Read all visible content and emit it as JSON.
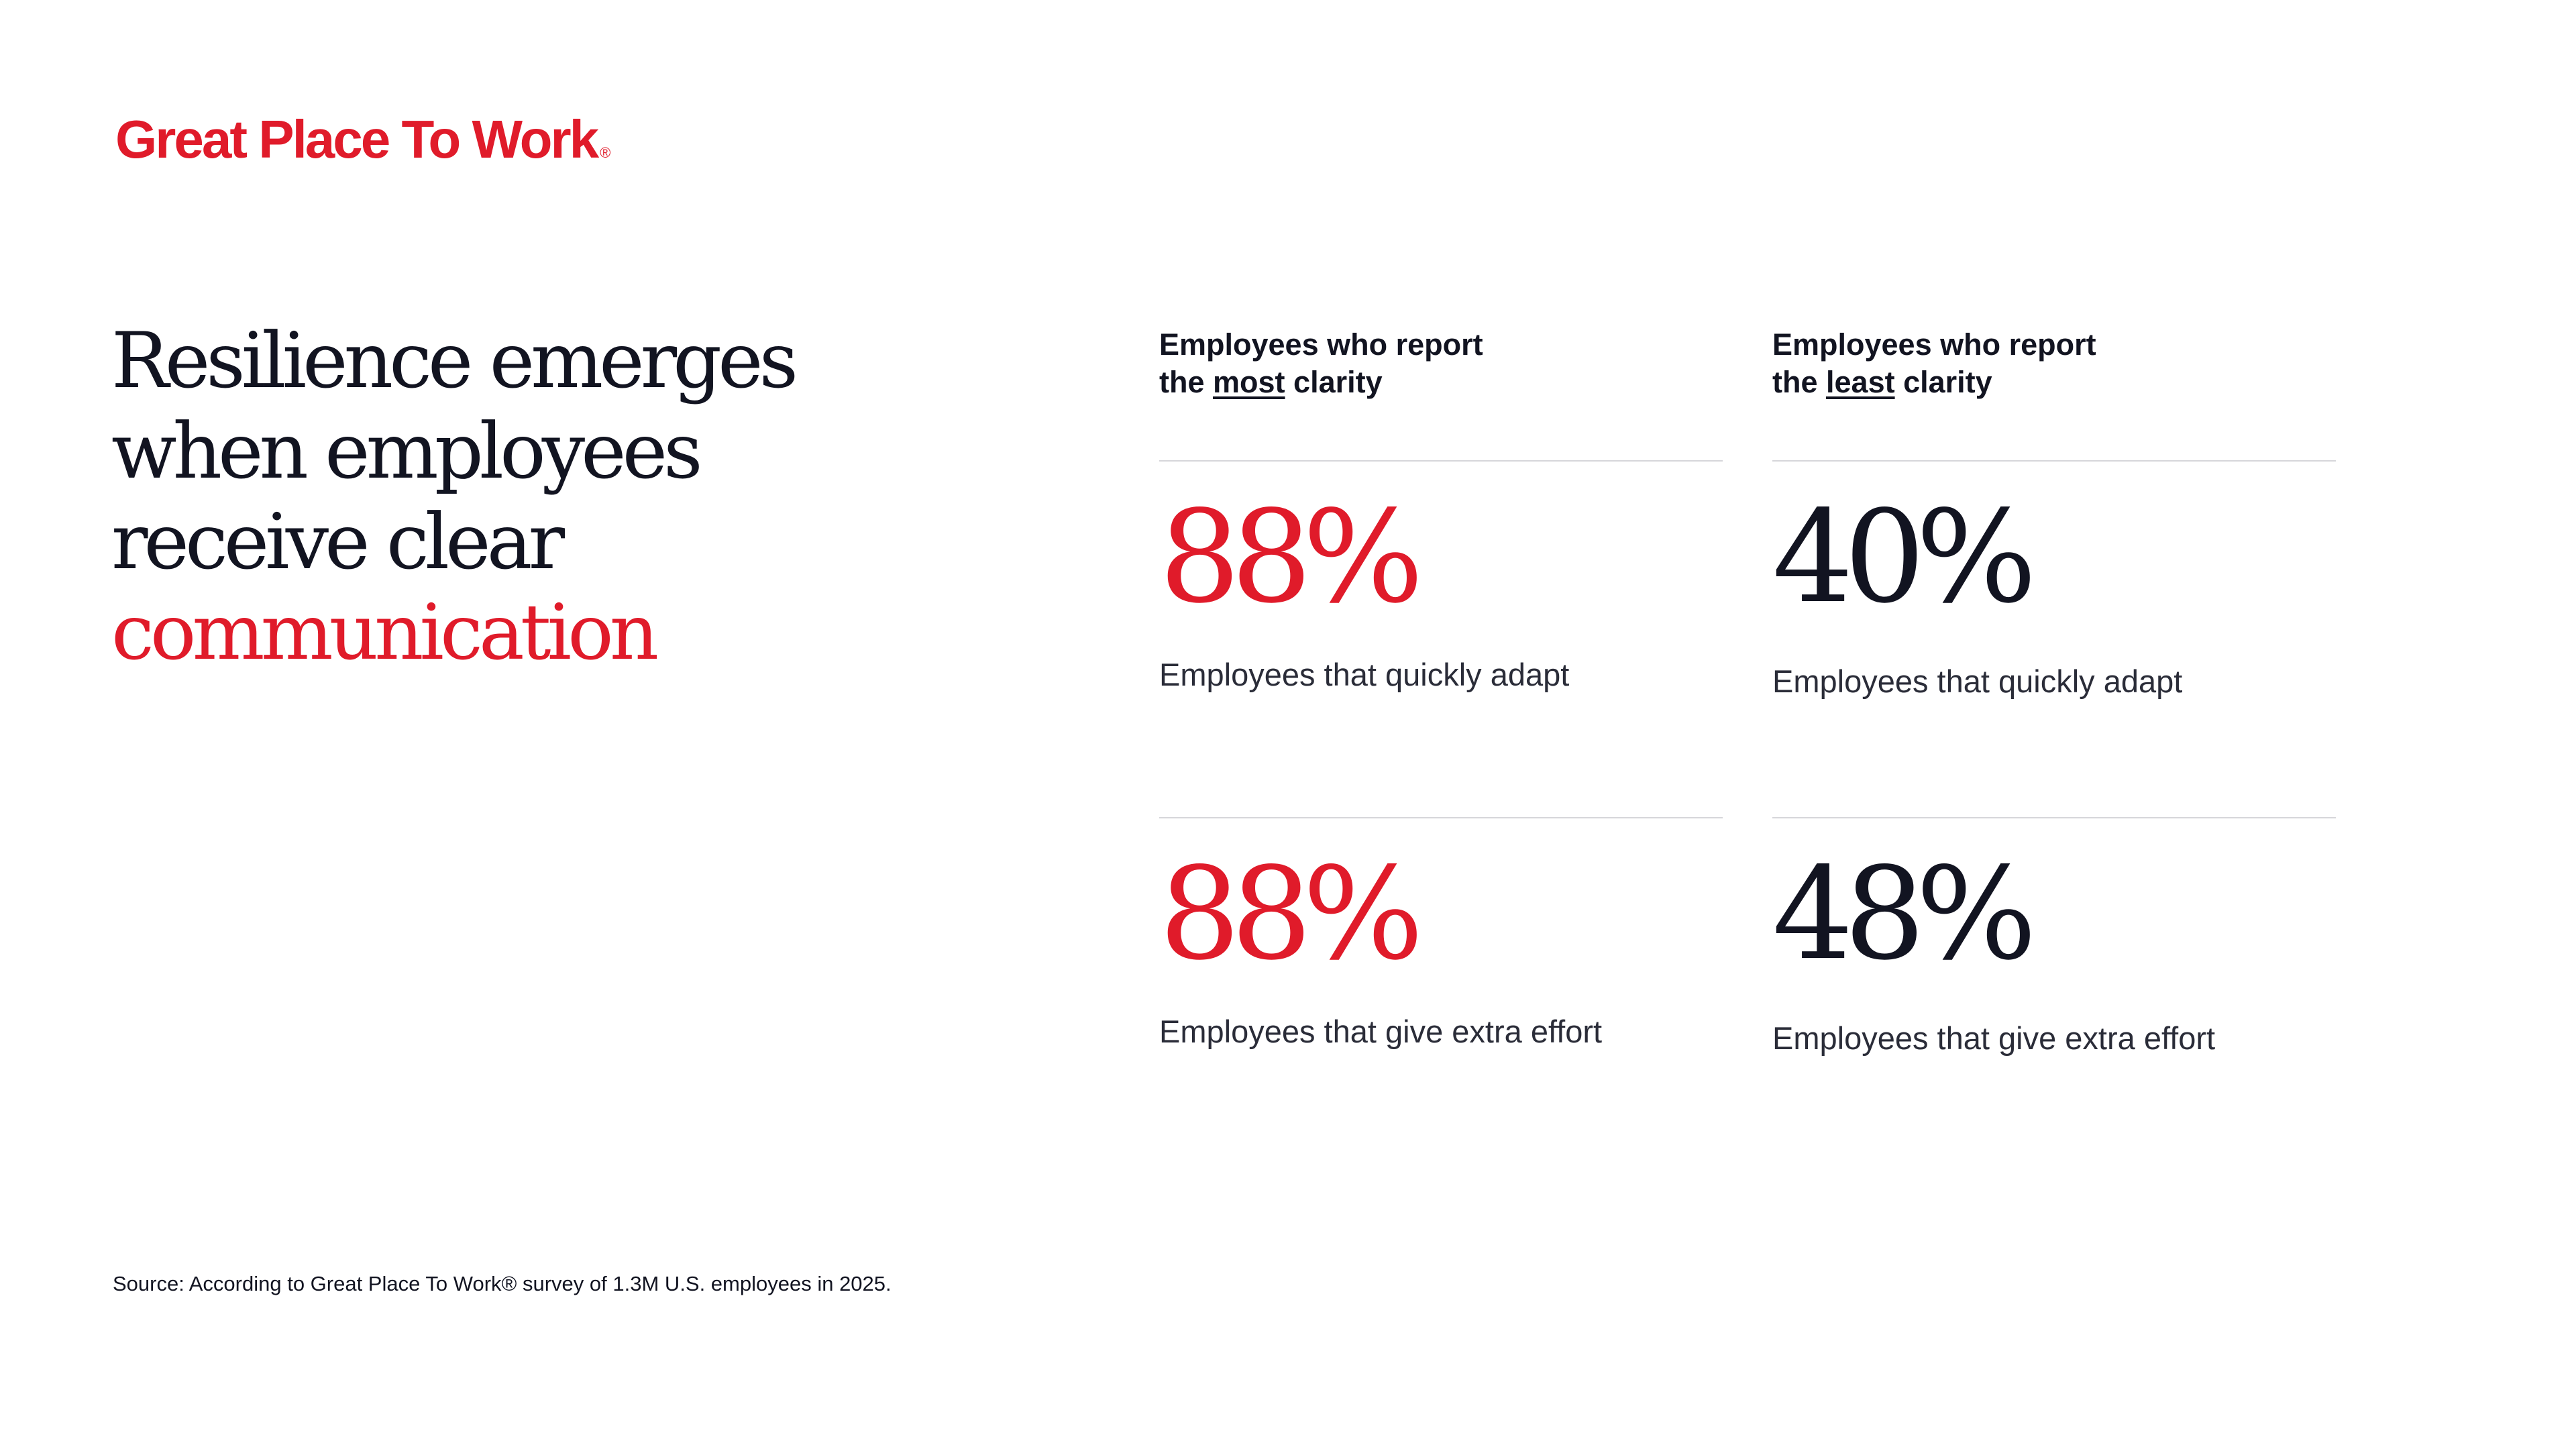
{
  "brand": {
    "logo_text": "Great Place To Work",
    "logo_mark": "®",
    "accent_color": "#e01b2a",
    "text_color": "#121421"
  },
  "headline": {
    "line1": "Resilience emerges",
    "line2": "when employees",
    "line3": "receive clear",
    "line4": "communication"
  },
  "columns": [
    {
      "header_prefix": "Employees who report",
      "header_the": "the",
      "header_emphasis": "most",
      "header_suffix": "clarity",
      "stats": [
        {
          "value": "88%",
          "label": "Employees that quickly adapt"
        },
        {
          "value": "88%",
          "label": "Employees that give extra effort"
        }
      ]
    },
    {
      "header_prefix": "Employees who report",
      "header_the": "the",
      "header_emphasis": "least",
      "header_suffix": "clarity",
      "stats": [
        {
          "value": "40%",
          "label": "Employees that quickly adapt"
        },
        {
          "value": "48%",
          "label": "Employees that give extra effort"
        }
      ]
    }
  ],
  "source": "Source: According to Great Place To Work® survey of 1.3M U.S. employees in 2025."
}
